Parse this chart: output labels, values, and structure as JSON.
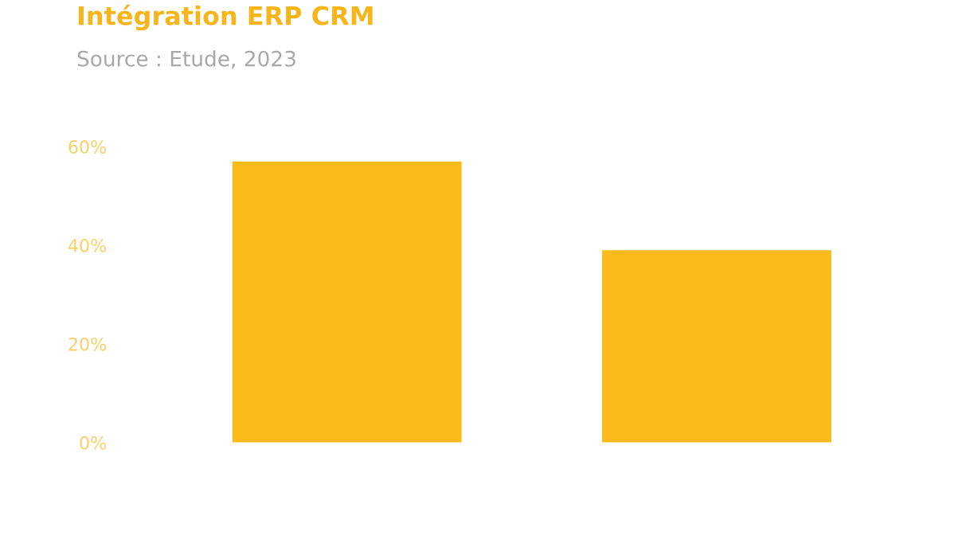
{
  "chart_data": {
    "type": "bar",
    "title": "Intégration ERP CRM",
    "annotations": [
      "Source : Etude, 2023"
    ],
    "categories": [
      null,
      null
    ],
    "values": [
      57,
      39
    ],
    "color": "#f8bb1a",
    "ylim": [
      0,
      60
    ],
    "yticks": [
      {
        "value": 0,
        "label": "0%"
      },
      {
        "value": 20,
        "label": "20%"
      },
      {
        "value": 40,
        "label": "40%"
      },
      {
        "value": 60,
        "label": "60%"
      }
    ],
    "tick_labels": "y",
    "grid": false,
    "legend": false
  }
}
